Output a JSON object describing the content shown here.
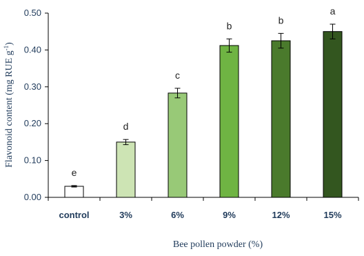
{
  "chart_data": {
    "type": "bar",
    "categories": [
      "control",
      "3%",
      "6%",
      "9%",
      "12%",
      "15%"
    ],
    "values": [
      0.03,
      0.15,
      0.283,
      0.412,
      0.425,
      0.45
    ],
    "errors": [
      0.002,
      0.007,
      0.013,
      0.018,
      0.02,
      0.02
    ],
    "significance_letters": [
      "e",
      "d",
      "c",
      "b",
      "b",
      "a"
    ],
    "bar_colors": [
      "#ffffff",
      "#cde4b4",
      "#98c977",
      "#6fb443",
      "#4a7a2c",
      "#33561f"
    ],
    "xlabel": "Bee pollen powder (%)",
    "ylabel": "Flavonoid content (mg RUE g",
    "ylabel_superscript": "-1",
    "ylabel_suffix": ")",
    "ylim": [
      0,
      0.5
    ],
    "yticks": [
      "0.00",
      "0.10",
      "0.20",
      "0.30",
      "0.40",
      "0.50"
    ],
    "grid": false,
    "legend": "none"
  }
}
